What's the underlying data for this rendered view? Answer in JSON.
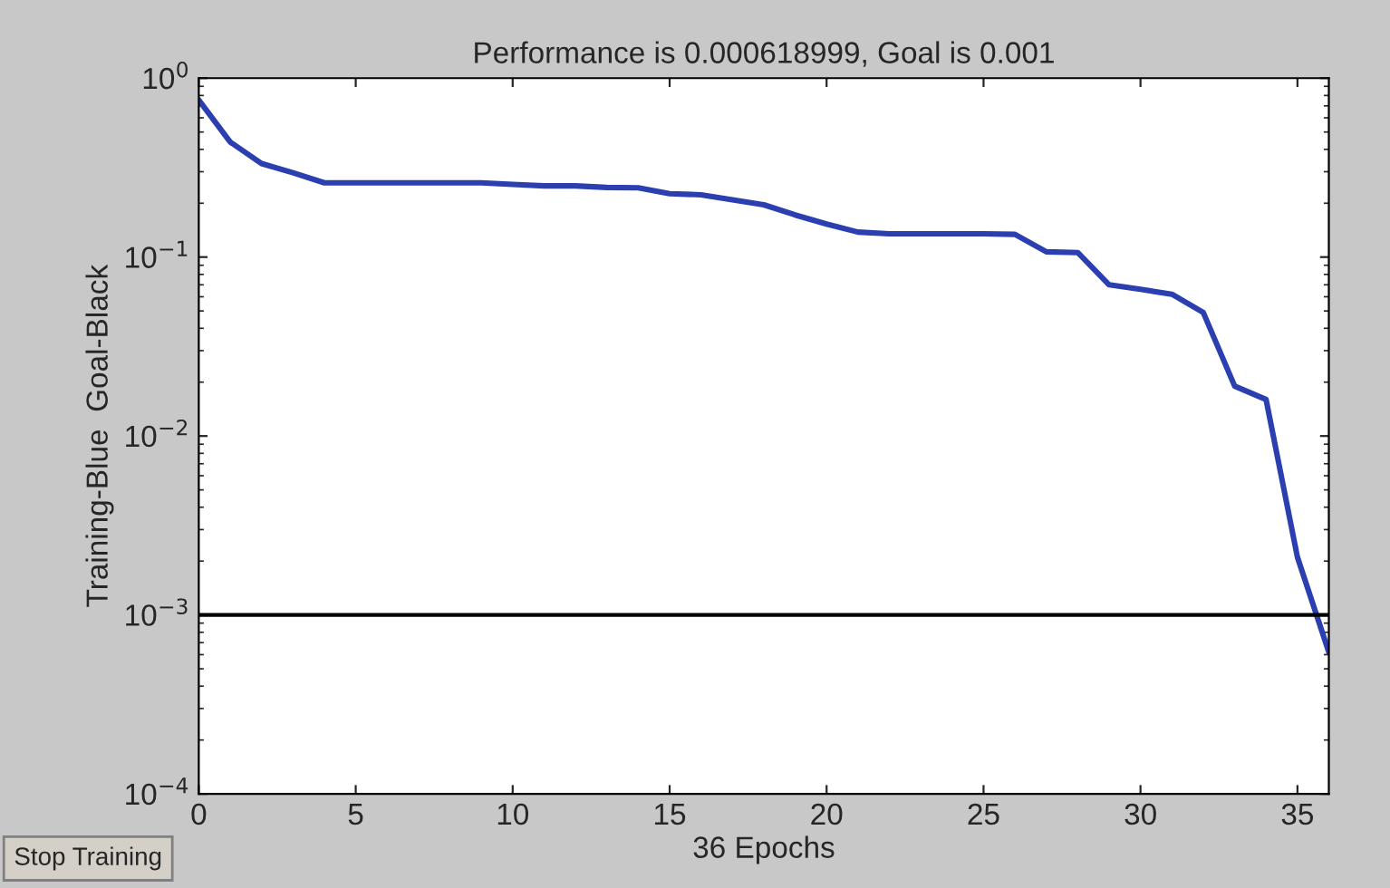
{
  "chart_data": {
    "type": "line",
    "title": "Performance is 0.000618999, Goal is 0.001",
    "xlabel": "36 Epochs",
    "ylabel": "Training-Blue  Goal-Black",
    "x": [
      0,
      1,
      2,
      3,
      4,
      5,
      6,
      7,
      8,
      9,
      10,
      11,
      12,
      13,
      14,
      15,
      16,
      17,
      18,
      19,
      20,
      21,
      22,
      23,
      24,
      25,
      26,
      27,
      28,
      29,
      30,
      31,
      32,
      33,
      34,
      35,
      36
    ],
    "series": [
      {
        "color": "#2b3fb0",
        "values": [
          0.755,
          0.44,
          0.333,
          0.296,
          0.26,
          0.26,
          0.26,
          0.26,
          0.26,
          0.26,
          0.255,
          0.25,
          0.25,
          0.245,
          0.244,
          0.226,
          0.223,
          0.209,
          0.196,
          0.172,
          0.153,
          0.138,
          0.135,
          0.135,
          0.135,
          0.135,
          0.134,
          0.107,
          0.106,
          0.07,
          0.066,
          0.062,
          0.049,
          0.019,
          0.016,
          0.0021,
          0.000619
        ]
      }
    ],
    "log": "y",
    "xlim": [
      0,
      36
    ],
    "ylim": [
      0.0001,
      1
    ],
    "xticks": [
      0,
      5,
      10,
      15,
      20,
      25,
      30,
      35
    ],
    "yticks": [
      {
        "value": 0.0001,
        "label": "10$^{−4}$"
      },
      {
        "value": 0.001,
        "label": "10$^{−3}$"
      },
      {
        "value": 0.01,
        "label": "10$^{−2}$"
      },
      {
        "value": 0.1,
        "label": "10$^{−1}$"
      },
      {
        "value": 1,
        "label": "10$^{0}$"
      }
    ],
    "ref_lines": [
      {
        "axis": "y",
        "value": 0.001,
        "color": "#000000",
        "line_style": "solid"
      }
    ],
    "annotations": [
      "Stop Training"
    ],
    "grid": false,
    "legend": false,
    "marker": "none",
    "line_style": "solid"
  }
}
